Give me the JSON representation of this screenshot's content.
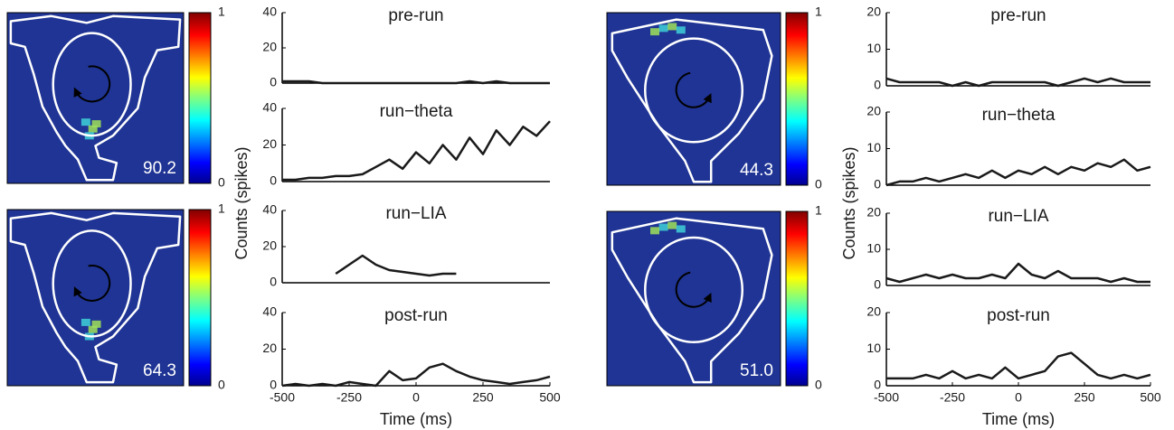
{
  "chart_data": [
    {
      "type": "heatmap",
      "annotation": "90.2",
      "clim": [
        0,
        1
      ],
      "cticks": [
        0,
        1
      ]
    },
    {
      "type": "heatmap",
      "annotation": "64.3",
      "clim": [
        0,
        1
      ],
      "cticks": [
        0,
        1
      ]
    },
    {
      "type": "line",
      "title": "pre-run",
      "xlim": [
        -500,
        500
      ],
      "ylim": [
        0,
        40
      ],
      "yticks": [
        0,
        20,
        40
      ],
      "color": "#1a1a1a",
      "x": [
        -500,
        -450,
        -400,
        -350,
        -300,
        -250,
        -200,
        -150,
        -100,
        -50,
        0,
        50,
        100,
        150,
        200,
        250,
        300,
        350,
        400,
        450,
        500
      ],
      "values": [
        1,
        1,
        1,
        0,
        0,
        0,
        0,
        0,
        0,
        0,
        0,
        0,
        0,
        0,
        1,
        0,
        1,
        0,
        0,
        0,
        0
      ]
    },
    {
      "type": "line",
      "title": "run−theta",
      "xlim": [
        -500,
        500
      ],
      "ylim": [
        0,
        40
      ],
      "yticks": [
        0,
        20,
        40
      ],
      "color": "#1a1a1a",
      "x": [
        -500,
        -450,
        -400,
        -350,
        -300,
        -250,
        -200,
        -150,
        -100,
        -50,
        0,
        50,
        100,
        150,
        200,
        250,
        300,
        350,
        400,
        450,
        500
      ],
      "values": [
        1,
        1,
        2,
        2,
        3,
        3,
        4,
        8,
        12,
        7,
        16,
        10,
        20,
        12,
        24,
        15,
        28,
        20,
        30,
        25,
        33
      ]
    },
    {
      "type": "line",
      "title": "run−LIA",
      "xlim": [
        -500,
        500
      ],
      "ylim": [
        0,
        40
      ],
      "yticks": [
        0,
        20,
        40
      ],
      "color": "#1a1a1a",
      "x": [
        -500,
        -450,
        -400,
        -350,
        -300,
        -250,
        -200,
        -150,
        -100,
        -50,
        0,
        50,
        100,
        150,
        200,
        250,
        300,
        350,
        400,
        450,
        500
      ],
      "values": [
        null,
        null,
        null,
        null,
        5,
        10,
        15,
        10,
        7,
        6,
        5,
        4,
        5,
        5,
        null,
        null,
        null,
        null,
        null,
        null,
        null
      ]
    },
    {
      "type": "line",
      "title": "post-run",
      "xlim": [
        -500,
        500
      ],
      "ylim": [
        0,
        40
      ],
      "yticks": [
        0,
        20,
        40
      ],
      "xticks": [
        -500,
        -250,
        0,
        250,
        500
      ],
      "xlabel": "Time (ms)",
      "ylabel": "Counts (spikes)",
      "color": "#1a1a1a",
      "x": [
        -500,
        -450,
        -400,
        -350,
        -300,
        -250,
        -200,
        -150,
        -100,
        -50,
        0,
        50,
        100,
        150,
        200,
        250,
        300,
        350,
        400,
        450,
        500
      ],
      "values": [
        0,
        1,
        0,
        1,
        0,
        2,
        1,
        0,
        8,
        3,
        4,
        10,
        12,
        8,
        5,
        3,
        2,
        1,
        2,
        3,
        5
      ]
    },
    {
      "type": "heatmap",
      "annotation": "44.3",
      "clim": [
        0,
        1
      ],
      "cticks": [
        0,
        1
      ]
    },
    {
      "type": "heatmap",
      "annotation": "51.0",
      "clim": [
        0,
        1
      ],
      "cticks": [
        0,
        1
      ]
    },
    {
      "type": "line",
      "title": "pre-run",
      "xlim": [
        -500,
        500
      ],
      "ylim": [
        0,
        20
      ],
      "yticks": [
        0,
        10,
        20
      ],
      "color": "#1a1a1a",
      "x": [
        -500,
        -450,
        -400,
        -350,
        -300,
        -250,
        -200,
        -150,
        -100,
        -50,
        0,
        50,
        100,
        150,
        200,
        250,
        300,
        350,
        400,
        450,
        500
      ],
      "values": [
        2,
        1,
        1,
        1,
        1,
        0,
        1,
        0,
        1,
        1,
        1,
        1,
        1,
        0,
        1,
        2,
        1,
        2,
        1,
        1,
        1
      ]
    },
    {
      "type": "line",
      "title": "run−theta",
      "xlim": [
        -500,
        500
      ],
      "ylim": [
        0,
        20
      ],
      "yticks": [
        0,
        10,
        20
      ],
      "color": "#1a1a1a",
      "x": [
        -500,
        -450,
        -400,
        -350,
        -300,
        -250,
        -200,
        -150,
        -100,
        -50,
        0,
        50,
        100,
        150,
        200,
        250,
        300,
        350,
        400,
        450,
        500
      ],
      "values": [
        0,
        1,
        1,
        2,
        1,
        2,
        3,
        2,
        4,
        2,
        4,
        3,
        5,
        3,
        5,
        4,
        6,
        5,
        7,
        4,
        5
      ]
    },
    {
      "type": "line",
      "title": "run−LIA",
      "xlim": [
        -500,
        500
      ],
      "ylim": [
        0,
        20
      ],
      "yticks": [
        0,
        10,
        20
      ],
      "color": "#1a1a1a",
      "x": [
        -500,
        -450,
        -400,
        -350,
        -300,
        -250,
        -200,
        -150,
        -100,
        -50,
        0,
        50,
        100,
        150,
        200,
        250,
        300,
        350,
        400,
        450,
        500
      ],
      "values": [
        2,
        1,
        2,
        3,
        2,
        3,
        2,
        2,
        3,
        2,
        6,
        3,
        2,
        4,
        2,
        2,
        2,
        1,
        2,
        1,
        1
      ]
    },
    {
      "type": "line",
      "title": "post-run",
      "xlim": [
        -500,
        500
      ],
      "ylim": [
        0,
        20
      ],
      "yticks": [
        0,
        10,
        20
      ],
      "xticks": [
        -500,
        -250,
        0,
        250,
        500
      ],
      "xlabel": "Time (ms)",
      "ylabel": "Counts (spikes)",
      "color": "#1a1a1a",
      "x": [
        -500,
        -450,
        -400,
        -350,
        -300,
        -250,
        -200,
        -150,
        -100,
        -50,
        0,
        50,
        100,
        150,
        200,
        250,
        300,
        350,
        400,
        450,
        500
      ],
      "values": [
        2,
        2,
        2,
        3,
        2,
        4,
        2,
        3,
        2,
        5,
        2,
        3,
        4,
        8,
        9,
        6,
        3,
        2,
        3,
        2,
        3
      ]
    }
  ]
}
